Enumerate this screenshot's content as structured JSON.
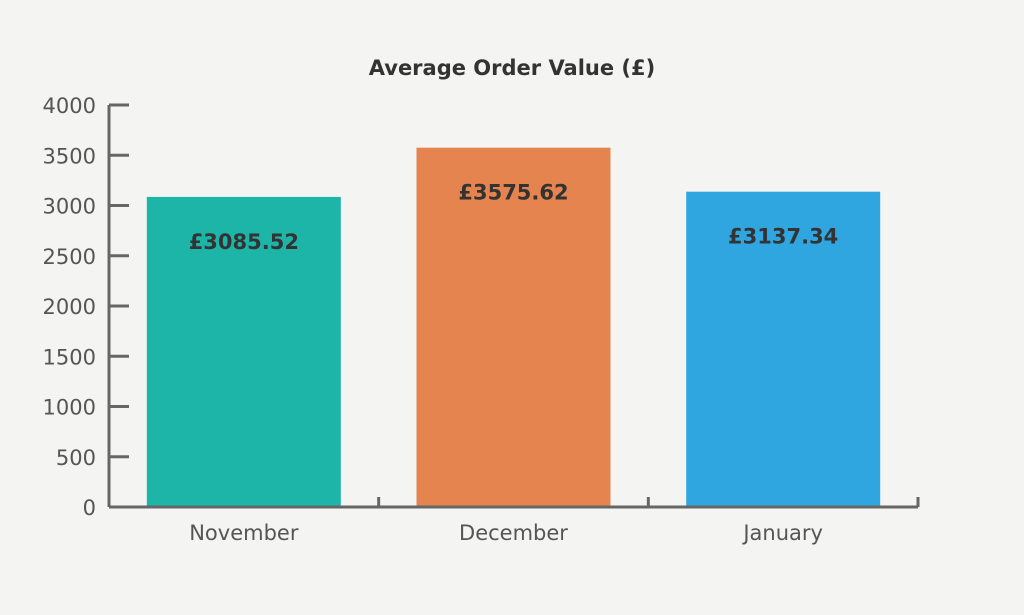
{
  "chart_data": {
    "type": "bar",
    "title": "Average Order Value (£)",
    "xlabel": "",
    "ylabel": "",
    "categories": [
      "November",
      "December",
      "January"
    ],
    "values": [
      3085.52,
      3575.62,
      3137.34
    ],
    "data_labels": [
      "£3085.52",
      "£3575.62",
      "£3137.34"
    ],
    "colors": [
      "#1db5a8",
      "#e5844e",
      "#30a6e0"
    ],
    "ylim": [
      0,
      4000
    ],
    "yticks": [
      0,
      500,
      1000,
      1500,
      2000,
      2500,
      3000,
      3500,
      4000
    ],
    "ytick_labels": [
      "0",
      "500",
      "1000",
      "1500",
      "2000",
      "2500",
      "3000",
      "3500",
      "4000"
    ],
    "grid": false,
    "legend": "none",
    "axis_color": "#666666"
  }
}
